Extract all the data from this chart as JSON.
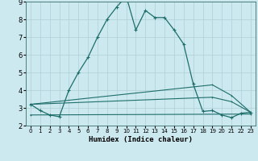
{
  "title": "",
  "xlabel": "Humidex (Indice chaleur)",
  "bg_color": "#cce9f0",
  "grid_color": "#b8d8e0",
  "line_color": "#1e6e6a",
  "xlim": [
    -0.5,
    23.5
  ],
  "ylim": [
    2,
    9
  ],
  "yticks": [
    2,
    3,
    4,
    5,
    6,
    7,
    8,
    9
  ],
  "xticks": [
    0,
    1,
    2,
    3,
    4,
    5,
    6,
    7,
    8,
    9,
    10,
    11,
    12,
    13,
    14,
    15,
    16,
    17,
    18,
    19,
    20,
    21,
    22,
    23
  ],
  "series_main": {
    "x": [
      0,
      1,
      2,
      3,
      4,
      5,
      6,
      7,
      8,
      9,
      10,
      11,
      12,
      13,
      14,
      15,
      16,
      17,
      18,
      19,
      20,
      21,
      22,
      23
    ],
    "y": [
      3.2,
      2.85,
      2.6,
      2.5,
      4.0,
      5.0,
      5.85,
      7.0,
      8.0,
      8.7,
      9.3,
      7.4,
      8.5,
      8.1,
      8.1,
      7.4,
      6.6,
      4.35,
      2.8,
      2.85,
      2.6,
      2.45,
      2.7,
      2.75
    ]
  },
  "series_lines": [
    {
      "x": [
        0,
        19,
        21,
        23
      ],
      "y": [
        3.2,
        4.3,
        3.7,
        2.75
      ]
    },
    {
      "x": [
        0,
        19,
        21,
        23
      ],
      "y": [
        3.2,
        3.6,
        3.35,
        2.75
      ]
    },
    {
      "x": [
        0,
        23
      ],
      "y": [
        2.6,
        2.65
      ]
    }
  ]
}
